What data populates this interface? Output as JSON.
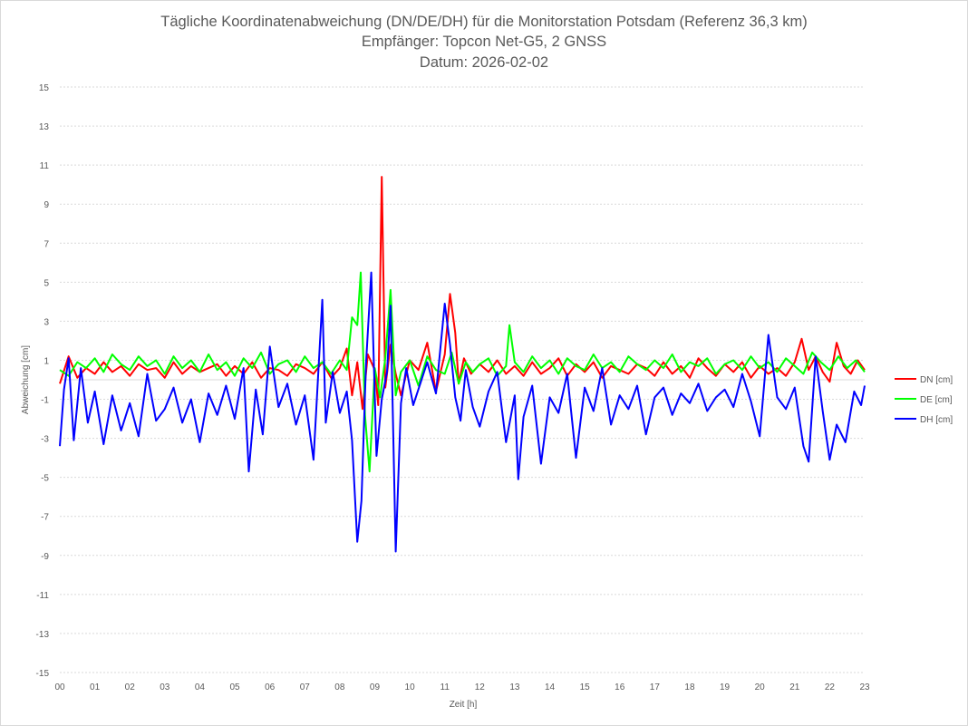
{
  "chart_data": {
    "type": "line",
    "title": "Tägliche Koordinatenabweichung (DN/DE/DH) für die Monitorstation Potsdam (Referenz 36,3 km)",
    "subtitle": "Empfänger: Topcon Net-G5, 2 GNSS",
    "date_line": "Datum: 2026-02-02",
    "xlabel": "Zeit [h]",
    "ylabel": "Abweichung [cm]",
    "x_range": [
      0,
      23
    ],
    "ylim": [
      -15,
      15
    ],
    "y_ticks": [
      "15",
      "13",
      "11",
      "9",
      "7",
      "5",
      "3",
      "1",
      "-1",
      "-3",
      "-5",
      "-7",
      "-9",
      "-11",
      "-13",
      "-15"
    ],
    "x_ticks": [
      "00",
      "01",
      "02",
      "03",
      "04",
      "05",
      "06",
      "07",
      "08",
      "09",
      "10",
      "11",
      "12",
      "13",
      "14",
      "15",
      "16",
      "17",
      "18",
      "19",
      "20",
      "21",
      "22",
      "23"
    ],
    "grid": true,
    "legend_position": "right",
    "series": [
      {
        "name": "DN [cm]",
        "color": "#ff0000",
        "x": [
          0,
          0.25,
          0.5,
          0.75,
          1,
          1.25,
          1.5,
          1.75,
          2,
          2.25,
          2.5,
          2.75,
          3,
          3.25,
          3.5,
          3.75,
          4,
          4.25,
          4.5,
          4.75,
          5,
          5.25,
          5.5,
          5.75,
          6,
          6.25,
          6.5,
          6.75,
          7,
          7.25,
          7.5,
          7.75,
          8,
          8.2,
          8.35,
          8.5,
          8.65,
          8.8,
          9,
          9.1,
          9.2,
          9.3,
          9.45,
          9.6,
          9.75,
          10,
          10.25,
          10.5,
          10.75,
          11,
          11.15,
          11.3,
          11.4,
          11.55,
          11.75,
          12,
          12.25,
          12.5,
          12.75,
          13,
          13.25,
          13.5,
          13.75,
          14,
          14.25,
          14.5,
          14.75,
          15,
          15.25,
          15.5,
          15.75,
          16,
          16.25,
          16.5,
          16.75,
          17,
          17.25,
          17.5,
          17.75,
          18,
          18.25,
          18.5,
          18.75,
          19,
          19.25,
          19.5,
          19.75,
          20,
          20.25,
          20.5,
          20.75,
          21,
          21.2,
          21.4,
          21.6,
          21.8,
          22,
          22.2,
          22.4,
          22.6,
          22.8,
          23
        ],
        "values": [
          -0.2,
          1.2,
          0.1,
          0.6,
          0.3,
          0.9,
          0.4,
          0.7,
          0.2,
          0.8,
          0.5,
          0.6,
          0.1,
          0.9,
          0.3,
          0.7,
          0.4,
          0.6,
          0.8,
          0.2,
          0.7,
          0.3,
          0.9,
          0.1,
          0.6,
          0.5,
          0.2,
          0.8,
          0.6,
          0.3,
          0.9,
          0.1,
          0.6,
          1.6,
          -0.8,
          0.9,
          -1.5,
          1.3,
          0.5,
          -1.3,
          10.4,
          -0.4,
          1.8,
          0.3,
          -0.8,
          1.0,
          0.5,
          1.9,
          -0.6,
          1.3,
          4.4,
          2.4,
          -0.2,
          1.1,
          0.3,
          0.8,
          0.4,
          1.0,
          0.3,
          0.7,
          0.2,
          0.9,
          0.3,
          0.6,
          1.1,
          0.2,
          0.8,
          0.4,
          0.9,
          0.1,
          0.7,
          0.5,
          0.3,
          0.8,
          0.6,
          0.2,
          0.9,
          0.3,
          0.7,
          0.1,
          1.1,
          0.6,
          0.2,
          0.8,
          0.4,
          0.9,
          0.1,
          0.7,
          0.3,
          0.6,
          0.2,
          0.9,
          2.1,
          0.5,
          1.2,
          0.4,
          -0.1,
          1.9,
          0.7,
          0.3,
          1.0,
          0.5
        ]
      },
      {
        "name": "DE [cm]",
        "color": "#00ff00",
        "x": [
          0,
          0.25,
          0.5,
          0.75,
          1,
          1.25,
          1.5,
          1.75,
          2,
          2.25,
          2.5,
          2.75,
          3,
          3.25,
          3.5,
          3.75,
          4,
          4.25,
          4.5,
          4.75,
          5,
          5.25,
          5.5,
          5.75,
          6,
          6.25,
          6.5,
          6.75,
          7,
          7.25,
          7.5,
          7.75,
          8,
          8.2,
          8.35,
          8.5,
          8.6,
          8.72,
          8.85,
          9,
          9.15,
          9.3,
          9.45,
          9.6,
          9.75,
          10,
          10.25,
          10.5,
          10.75,
          11,
          11.2,
          11.4,
          11.6,
          11.8,
          12,
          12.25,
          12.5,
          12.75,
          12.85,
          13,
          13.25,
          13.5,
          13.75,
          14,
          14.25,
          14.5,
          14.75,
          15,
          15.25,
          15.5,
          15.75,
          16,
          16.25,
          16.5,
          16.75,
          17,
          17.25,
          17.5,
          17.75,
          18,
          18.25,
          18.5,
          18.75,
          19,
          19.25,
          19.5,
          19.75,
          20,
          20.25,
          20.5,
          20.75,
          21,
          21.25,
          21.5,
          21.75,
          22,
          22.25,
          22.5,
          22.75,
          23
        ],
        "values": [
          0.5,
          0.2,
          0.9,
          0.6,
          1.1,
          0.4,
          1.3,
          0.8,
          0.5,
          1.2,
          0.7,
          1.0,
          0.3,
          1.2,
          0.6,
          1.0,
          0.4,
          1.3,
          0.5,
          0.9,
          0.2,
          1.1,
          0.6,
          1.4,
          0.3,
          0.8,
          1.0,
          0.4,
          1.2,
          0.6,
          0.9,
          0.3,
          1.0,
          0.5,
          3.2,
          2.8,
          5.5,
          -1.8,
          -4.7,
          0.6,
          -0.9,
          1.1,
          4.6,
          -0.8,
          0.4,
          1.0,
          -0.3,
          1.2,
          0.5,
          0.3,
          1.4,
          -0.2,
          0.9,
          0.4,
          0.8,
          1.1,
          0.2,
          0.7,
          2.8,
          0.9,
          0.4,
          1.2,
          0.6,
          1.0,
          0.3,
          1.1,
          0.7,
          0.5,
          1.3,
          0.6,
          0.9,
          0.4,
          1.2,
          0.8,
          0.5,
          1.0,
          0.6,
          1.3,
          0.4,
          0.9,
          0.7,
          1.1,
          0.3,
          0.8,
          1.0,
          0.5,
          1.2,
          0.6,
          0.9,
          0.4,
          1.1,
          0.7,
          0.3,
          1.4,
          0.9,
          0.5,
          1.2,
          0.6,
          1.0,
          0.4
        ]
      },
      {
        "name": "DH [cm]",
        "color": "#0000ff",
        "x": [
          0,
          0.12,
          0.25,
          0.4,
          0.6,
          0.8,
          1,
          1.25,
          1.5,
          1.75,
          2,
          2.25,
          2.5,
          2.75,
          3,
          3.25,
          3.5,
          3.75,
          4,
          4.25,
          4.5,
          4.75,
          5,
          5.25,
          5.4,
          5.6,
          5.8,
          6,
          6.25,
          6.5,
          6.75,
          7,
          7.25,
          7.5,
          7.6,
          7.8,
          8,
          8.2,
          8.35,
          8.5,
          8.62,
          8.75,
          8.9,
          9.05,
          9.2,
          9.35,
          9.45,
          9.6,
          9.75,
          9.9,
          10.1,
          10.3,
          10.5,
          10.75,
          11,
          11.15,
          11.3,
          11.45,
          11.6,
          11.8,
          12,
          12.25,
          12.5,
          12.75,
          13,
          13.1,
          13.25,
          13.5,
          13.75,
          14,
          14.25,
          14.5,
          14.75,
          15,
          15.25,
          15.5,
          15.75,
          16,
          16.25,
          16.5,
          16.75,
          17,
          17.25,
          17.5,
          17.75,
          18,
          18.25,
          18.5,
          18.75,
          19,
          19.25,
          19.5,
          19.75,
          20,
          20.25,
          20.5,
          20.75,
          21,
          21.25,
          21.4,
          21.6,
          21.8,
          22,
          22.2,
          22.45,
          22.7,
          22.9,
          23
        ],
        "values": [
          -3.4,
          -0.5,
          1.1,
          -3.1,
          0.6,
          -2.2,
          -0.6,
          -3.3,
          -0.8,
          -2.6,
          -1.2,
          -2.9,
          0.3,
          -2.1,
          -1.5,
          -0.4,
          -2.2,
          -1.0,
          -3.2,
          -0.7,
          -1.8,
          -0.3,
          -2.0,
          0.6,
          -4.7,
          -0.5,
          -2.8,
          1.7,
          -1.4,
          -0.2,
          -2.3,
          -0.8,
          -4.1,
          4.1,
          -2.2,
          0.4,
          -1.7,
          -0.6,
          -3.1,
          -8.3,
          -6.2,
          0.8,
          5.5,
          -3.9,
          -1.0,
          0.4,
          3.8,
          -8.8,
          -1.2,
          0.6,
          -1.3,
          -0.2,
          0.9,
          -0.7,
          3.9,
          1.8,
          -0.9,
          -2.1,
          0.5,
          -1.4,
          -2.4,
          -0.6,
          0.4,
          -3.2,
          -0.8,
          -5.1,
          -1.9,
          -0.3,
          -4.3,
          -0.9,
          -1.7,
          0.3,
          -4.0,
          -0.4,
          -1.6,
          0.6,
          -2.3,
          -0.8,
          -1.5,
          -0.3,
          -2.8,
          -0.9,
          -0.4,
          -1.8,
          -0.7,
          -1.2,
          -0.2,
          -1.6,
          -0.9,
          -0.5,
          -1.4,
          0.3,
          -1.1,
          -2.9,
          2.3,
          -0.9,
          -1.5,
          -0.4,
          -3.4,
          -4.2,
          1.2,
          -1.6,
          -4.1,
          -2.3,
          -3.2,
          -0.6,
          -1.3,
          -0.3
        ]
      }
    ]
  }
}
